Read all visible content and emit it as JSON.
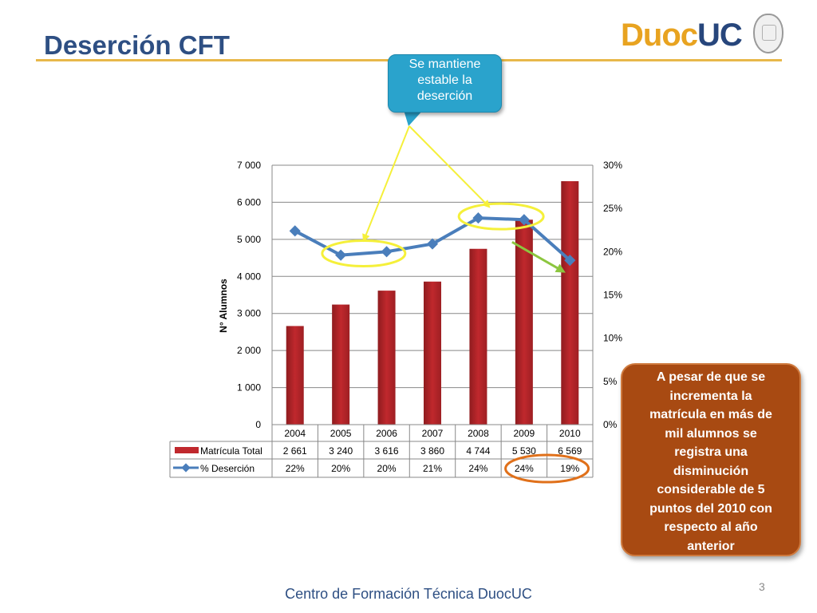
{
  "slide": {
    "title": "Deserción CFT",
    "logo_text_1": "Duoc",
    "logo_text_2": "UC",
    "page_number": "3",
    "footer": "Centro de Formación Técnica DuocUC"
  },
  "callouts": {
    "top": [
      "Se mantiene",
      "estable la",
      "deserción"
    ],
    "right": [
      "A pesar de que se",
      "incrementa la",
      "matrícula en  más de",
      "mil alumnos se",
      "registra una",
      "disminución",
      "considerable de 5",
      "puntos  del 2010 con",
      "respecto al año",
      "anterior"
    ]
  },
  "colors": {
    "title": "#2e4f83",
    "bar": "#c0282d",
    "line": "#4a7ebb",
    "callout_top": "#2aa3cc",
    "callout_right": "#a84a12",
    "highlight_yellow": "#f5f03a",
    "highlight_orange": "#e0701a",
    "arrow_green": "#8cc63f"
  },
  "chart_data": {
    "type": "bar",
    "categories": [
      "2004",
      "2005",
      "2006",
      "2007",
      "2008",
      "2009",
      "2010"
    ],
    "ylabel": "N° Alumnos",
    "ylim": [
      0,
      7000
    ],
    "yticks": [
      "0",
      "1 000",
      "2 000",
      "3 000",
      "4 000",
      "5 000",
      "6 000",
      "7 000"
    ],
    "y2lim": [
      0,
      30
    ],
    "y2ticks": [
      "0%",
      "5%",
      "10%",
      "15%",
      "20%",
      "25%",
      "30%"
    ],
    "grid": true,
    "legend": "data-table below chart",
    "series": [
      {
        "name": "Matrícula Total",
        "type": "bar",
        "axis": "left",
        "values": [
          2661,
          3240,
          3616,
          3860,
          4744,
          5530,
          6569
        ],
        "labels": [
          "2 661",
          "3 240",
          "3 616",
          "3 860",
          "4 744",
          "5 530",
          "6 569"
        ]
      },
      {
        "name": "% Deserción",
        "type": "line",
        "axis": "right",
        "values": [
          22.4,
          19.6,
          20.0,
          20.9,
          23.9,
          23.7,
          19.0
        ],
        "labels": [
          "22%",
          "20%",
          "20%",
          "21%",
          "24%",
          "24%",
          "19%"
        ]
      }
    ]
  }
}
